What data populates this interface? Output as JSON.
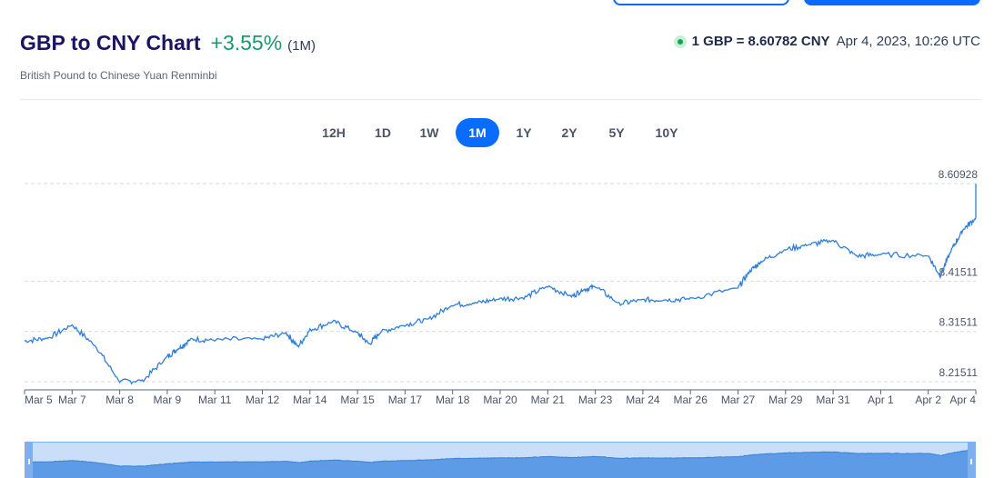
{
  "header": {
    "title": "GBP to CNY Chart",
    "change": "+3.55%",
    "period": "(1M)",
    "subtitle": "British Pound to Chinese Yuan Renminbi",
    "rate": "1 GBP = 8.60782 CNY",
    "timestamp": "Apr 4, 2023, 10:26 UTC"
  },
  "tabs": [
    {
      "label": "12H",
      "active": false
    },
    {
      "label": "1D",
      "active": false
    },
    {
      "label": "1W",
      "active": false
    },
    {
      "label": "1M",
      "active": true
    },
    {
      "label": "1Y",
      "active": false
    },
    {
      "label": "2Y",
      "active": false
    },
    {
      "label": "5Y",
      "active": false
    },
    {
      "label": "10Y",
      "active": false
    }
  ],
  "colors": {
    "accent": "#0a6cff",
    "line": "#2f7fd8",
    "positive": "#139b6e",
    "title": "#1b1464"
  },
  "chart_data": {
    "type": "line",
    "title": "GBP to CNY Chart",
    "xlabel": "",
    "ylabel": "",
    "y_ticks": [
      "8.60928",
      "8.41511",
      "8.31511",
      "8.21511"
    ],
    "y_tick_values": [
      8.60928,
      8.41511,
      8.31511,
      8.21511
    ],
    "ylim": [
      8.21511,
      8.60928
    ],
    "x_ticks": [
      "Mar 5",
      "Mar 7",
      "Mar 8",
      "Mar 9",
      "Mar 11",
      "Mar 12",
      "Mar 14",
      "Mar 15",
      "Mar 17",
      "Mar 18",
      "Mar 20",
      "Mar 21",
      "Mar 23",
      "Mar 24",
      "Mar 26",
      "Mar 27",
      "Mar 29",
      "Mar 31",
      "Apr 1",
      "Apr 2",
      "Apr 4"
    ],
    "grid": "horizontal dashed",
    "legend": "none",
    "series": [
      {
        "x": [
          "Mar 5",
          "Mar 6",
          "Mar 7",
          "Mar 7",
          "Mar 8",
          "Mar 8",
          "Mar 9",
          "Mar 9",
          "Mar 10",
          "Mar 11",
          "Mar 12",
          "Mar 13",
          "Mar 13",
          "Mar 14",
          "Mar 14",
          "Mar 15",
          "Mar 15",
          "Mar 16",
          "Mar 17",
          "Mar 17",
          "Mar 18",
          "Mar 19",
          "Mar 20",
          "Mar 20",
          "Mar 21",
          "Mar 22",
          "Mar 22",
          "Mar 23",
          "Mar 23",
          "Mar 24",
          "Mar 25",
          "Mar 26",
          "Mar 27",
          "Mar 27",
          "Mar 28",
          "Mar 29",
          "Mar 30",
          "Mar 31",
          "Mar 31",
          "Apr 1",
          "Apr 2",
          "Apr 2",
          "Apr 3",
          "Apr 3",
          "Apr 4",
          "Apr 4"
        ],
        "values": [
          8.296,
          8.302,
          8.328,
          8.285,
          8.215,
          8.218,
          8.265,
          8.282,
          8.3,
          8.298,
          8.3,
          8.312,
          8.285,
          8.318,
          8.335,
          8.312,
          8.29,
          8.315,
          8.328,
          8.34,
          8.368,
          8.372,
          8.38,
          8.382,
          8.405,
          8.385,
          8.398,
          8.405,
          8.37,
          8.378,
          8.378,
          8.38,
          8.402,
          8.435,
          8.455,
          8.478,
          8.488,
          8.496,
          8.465,
          8.468,
          8.466,
          8.425,
          8.48,
          8.52,
          8.54,
          8.609
        ]
      }
    ]
  }
}
